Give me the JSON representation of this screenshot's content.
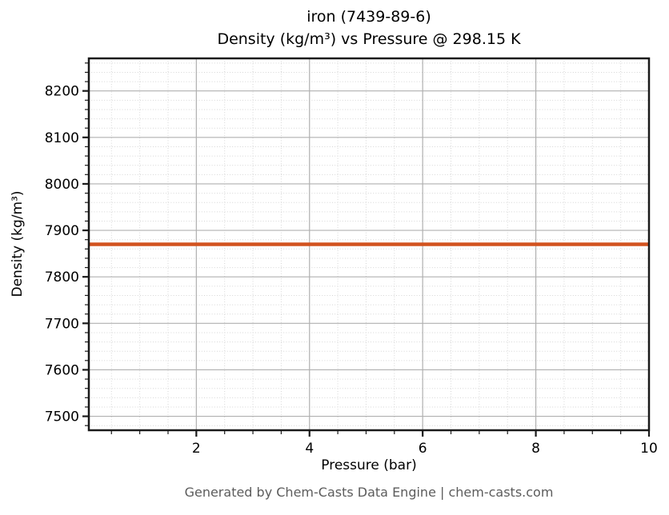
{
  "chart_data": {
    "type": "line",
    "title": "iron (7439-89-6)",
    "subtitle": "Density (kg/m³) vs Pressure @ 298.15 K",
    "xlabel": "Pressure (bar)",
    "ylabel": "Density (kg/m³)",
    "footer": "Generated by Chem-Casts Data Engine | chem-casts.com",
    "xlim": [
      0.1,
      10
    ],
    "ylim": [
      7470,
      8270
    ],
    "x_major_ticks": [
      2,
      4,
      6,
      8,
      10
    ],
    "x_minor_step": 0.5,
    "y_major_ticks": [
      7500,
      7600,
      7700,
      7800,
      7900,
      8000,
      8100,
      8200
    ],
    "y_minor_step": 20,
    "grid": {
      "major_color": "#b0b0b0",
      "minor_color": "#d6d6d6",
      "minor_style": "dotted"
    },
    "frame_color": "#1a1a1a",
    "footer_color": "#5c5c5c",
    "series": [
      {
        "name": "density-vs-pressure",
        "color": "#d2521e",
        "linewidth": 4.5,
        "constant_value": 7870,
        "x": [
          0.1,
          10
        ],
        "y": [
          7870,
          7870
        ]
      }
    ]
  }
}
